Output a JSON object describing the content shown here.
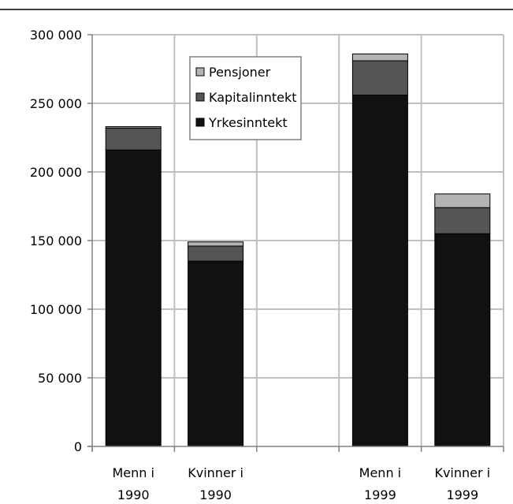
{
  "chart_data": {
    "type": "bar",
    "stacked": true,
    "categories": [
      [
        "Menn i",
        "1990"
      ],
      [
        "Kvinner i",
        "1990"
      ],
      [
        "",
        ""
      ],
      [
        "Menn i",
        "1999"
      ],
      [
        "Kvinner i",
        "1999"
      ]
    ],
    "series": [
      {
        "name": "Yrkesinntekt",
        "color": "#111111",
        "values": [
          216000,
          135000,
          null,
          256000,
          155000
        ]
      },
      {
        "name": "Kapitalinntekt",
        "color": "#555555",
        "values": [
          16000,
          11000,
          null,
          25000,
          19000
        ]
      },
      {
        "name": "Pensjoner",
        "color": "#b3b3b3",
        "values": [
          1000,
          3000,
          null,
          5000,
          10000
        ]
      }
    ],
    "legend_order": [
      "Pensjoner",
      "Kapitalinntekt",
      "Yrkesinntekt"
    ],
    "legend_position": "top-center",
    "ylim": [
      0,
      300000
    ],
    "y_ticks": [
      0,
      50000,
      100000,
      150000,
      200000,
      250000,
      300000
    ],
    "y_tick_labels": [
      "0",
      "50 000",
      "100 000",
      "150 000",
      "200 000",
      "250 000",
      "300 000"
    ],
    "grid": true
  }
}
